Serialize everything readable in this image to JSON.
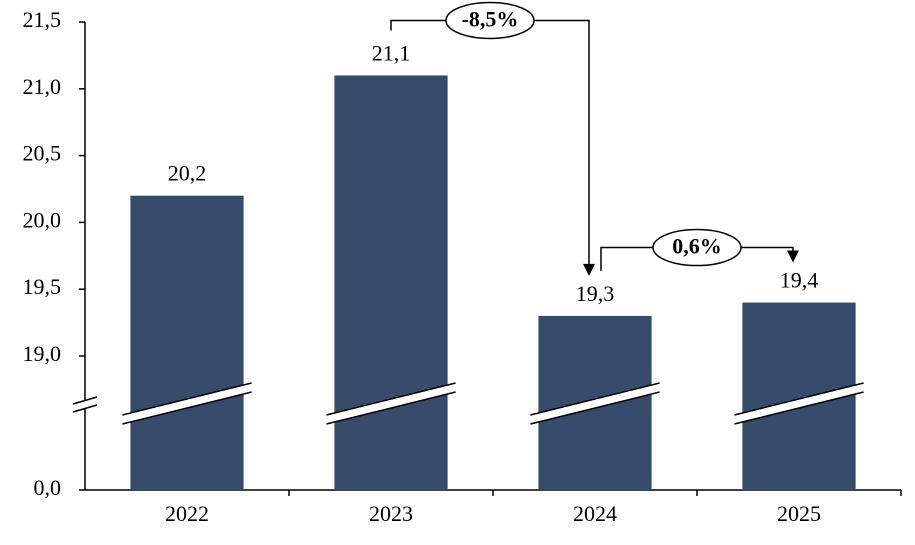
{
  "chart_data": {
    "type": "bar",
    "categories": [
      "2022",
      "2023",
      "2024",
      "2025"
    ],
    "values": [
      20.2,
      21.1,
      19.3,
      19.4
    ],
    "value_labels": [
      "20,2",
      "21,1",
      "19,3",
      "19,4"
    ],
    "color": "#374c6b",
    "ylim": [
      0,
      21.5
    ],
    "axis_break": [
      0,
      19
    ],
    "yticks": [
      {
        "value": 0,
        "label": "0,0"
      },
      {
        "value": 19,
        "label": "19,0"
      },
      {
        "value": 19.5,
        "label": "19,5"
      },
      {
        "value": 20,
        "label": "20,0"
      },
      {
        "value": 20.5,
        "label": "20,5"
      },
      {
        "value": 21,
        "label": "21,0"
      },
      {
        "value": 21.5,
        "label": "21,5"
      }
    ],
    "annotations": [
      {
        "text": "-8,5%",
        "from": "2023",
        "to": "2024"
      },
      {
        "text": "0,6%",
        "from": "2024",
        "to": "2025"
      }
    ]
  }
}
